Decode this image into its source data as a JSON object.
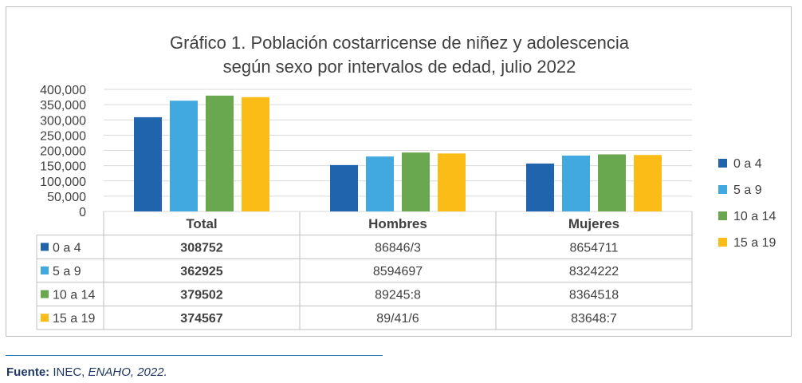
{
  "chart_data": {
    "type": "bar",
    "title": [
      "Gráfico 1. Población costarricense de niñez y adolescencia",
      "según sexo por intervalos de edad, julio 2022"
    ],
    "categories": [
      "Total",
      "Hombres",
      "Mujeres"
    ],
    "series": [
      {
        "name": "0 a 4",
        "color": "#1f64ad",
        "values": [
          308752,
          152000,
          157000
        ],
        "table": [
          "308752",
          "86846/3",
          "8654711"
        ]
      },
      {
        "name": "5 a 9",
        "color": "#41a8e0",
        "values": [
          362925,
          180000,
          183000
        ],
        "table": [
          "362925",
          "8594697",
          "8324222"
        ]
      },
      {
        "name": "10 a 14",
        "color": "#6aa84f",
        "values": [
          379502,
          193000,
          187000
        ],
        "table": [
          "379502",
          "89245:8",
          "8364518"
        ]
      },
      {
        "name": "15 a 19",
        "color": "#fbbc17",
        "values": [
          374567,
          190000,
          185000
        ],
        "table": [
          "374567",
          "89/41/6",
          "83648:7"
        ]
      }
    ],
    "ylim": [
      0,
      400000
    ],
    "yticks": [
      "0",
      "50,000",
      "100,000",
      "150,000",
      "200,000",
      "250,000",
      "300,000",
      "350,000",
      "400,000"
    ],
    "grid": true,
    "legend_position": "right"
  },
  "source": {
    "label": "Fuente:",
    "org": "INEC,",
    "survey": "ENAHO, 2022."
  }
}
